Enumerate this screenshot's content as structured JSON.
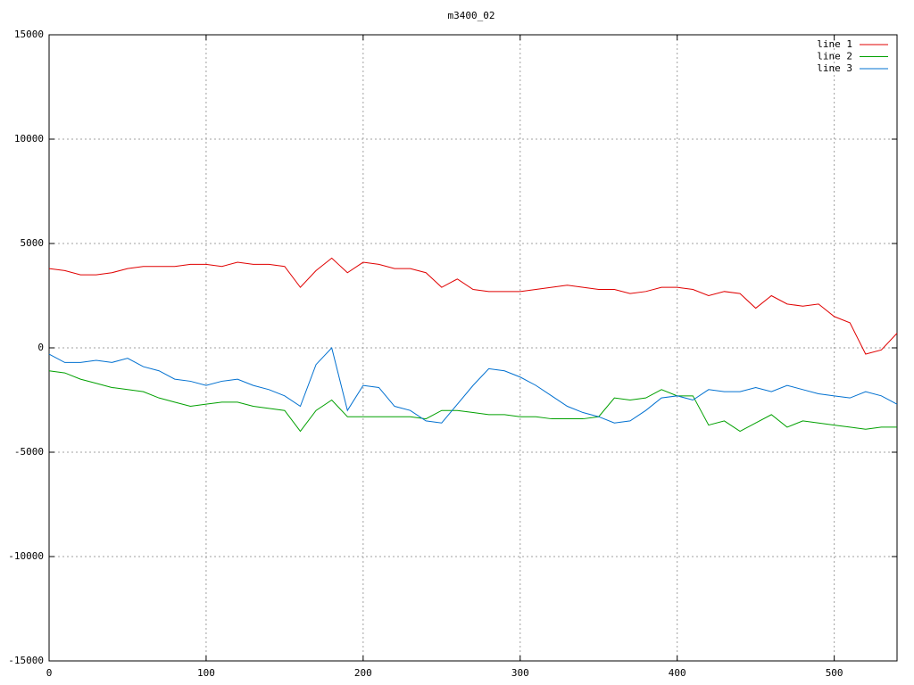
{
  "chart_data": {
    "type": "line",
    "title": "m3400_02",
    "x": [
      0,
      10,
      20,
      30,
      40,
      50,
      60,
      70,
      80,
      90,
      100,
      110,
      120,
      130,
      140,
      150,
      160,
      170,
      180,
      190,
      200,
      210,
      220,
      230,
      240,
      250,
      260,
      270,
      280,
      290,
      300,
      310,
      320,
      330,
      340,
      350,
      360,
      370,
      380,
      390,
      400,
      410,
      420,
      430,
      440,
      450,
      460,
      470,
      480,
      490,
      500,
      510,
      520,
      530,
      540
    ],
    "series": [
      {
        "name": "line 1",
        "color": "#e00000",
        "values": [
          3800,
          3700,
          3500,
          3500,
          3600,
          3800,
          3900,
          3900,
          3900,
          4000,
          4000,
          3900,
          4100,
          4000,
          4000,
          3900,
          2900,
          3700,
          4300,
          3600,
          4100,
          4000,
          3800,
          3800,
          3600,
          2900,
          3300,
          2800,
          2700,
          2700,
          2700,
          2800,
          2900,
          3000,
          2900,
          2800,
          2800,
          2600,
          2700,
          2900,
          2900,
          2800,
          2500,
          2700,
          2600,
          1900,
          2500,
          2100,
          2000,
          2100,
          1500,
          1200,
          -300,
          -100,
          700
        ]
      },
      {
        "name": "line 2",
        "color": "#00a000",
        "values": [
          -1100,
          -1200,
          -1500,
          -1700,
          -1900,
          -2000,
          -2100,
          -2400,
          -2600,
          -2800,
          -2700,
          -2600,
          -2600,
          -2800,
          -2900,
          -3000,
          -4000,
          -3000,
          -2500,
          -3300,
          -3300,
          -3300,
          -3300,
          -3300,
          -3400,
          -3000,
          -3000,
          -3100,
          -3200,
          -3200,
          -3300,
          -3300,
          -3400,
          -3400,
          -3400,
          -3300,
          -2400,
          -2500,
          -2400,
          -2000,
          -2300,
          -2300,
          -3700,
          -3500,
          -4000,
          -3600,
          -3200,
          -3800,
          -3500,
          -3600,
          -3700,
          -3800,
          -3900,
          -3800,
          -3800
        ]
      },
      {
        "name": "line 3",
        "color": "#0070d0",
        "values": [
          -300,
          -700,
          -700,
          -600,
          -700,
          -500,
          -900,
          -1100,
          -1500,
          -1600,
          -1800,
          -1600,
          -1500,
          -1800,
          -2000,
          -2300,
          -2800,
          -800,
          0,
          -3000,
          -1800,
          -1900,
          -2800,
          -3000,
          -3500,
          -3600,
          -2700,
          -1800,
          -1000,
          -1100,
          -1400,
          -1800,
          -2300,
          -2800,
          -3100,
          -3300,
          -3600,
          -3500,
          -3000,
          -2400,
          -2300,
          -2500,
          -2000,
          -2100,
          -2100,
          -1900,
          -2100,
          -1800,
          -2000,
          -2200,
          -2300,
          -2400,
          -2100,
          -2300,
          -2700
        ]
      }
    ],
    "xlim": [
      0,
      540
    ],
    "ylim": [
      -15000,
      15000
    ],
    "xticks": [
      0,
      100,
      200,
      300,
      400,
      500
    ],
    "yticks": [
      -15000,
      -10000,
      -5000,
      0,
      5000,
      10000,
      15000
    ],
    "grid": true,
    "legend": "top-right"
  }
}
